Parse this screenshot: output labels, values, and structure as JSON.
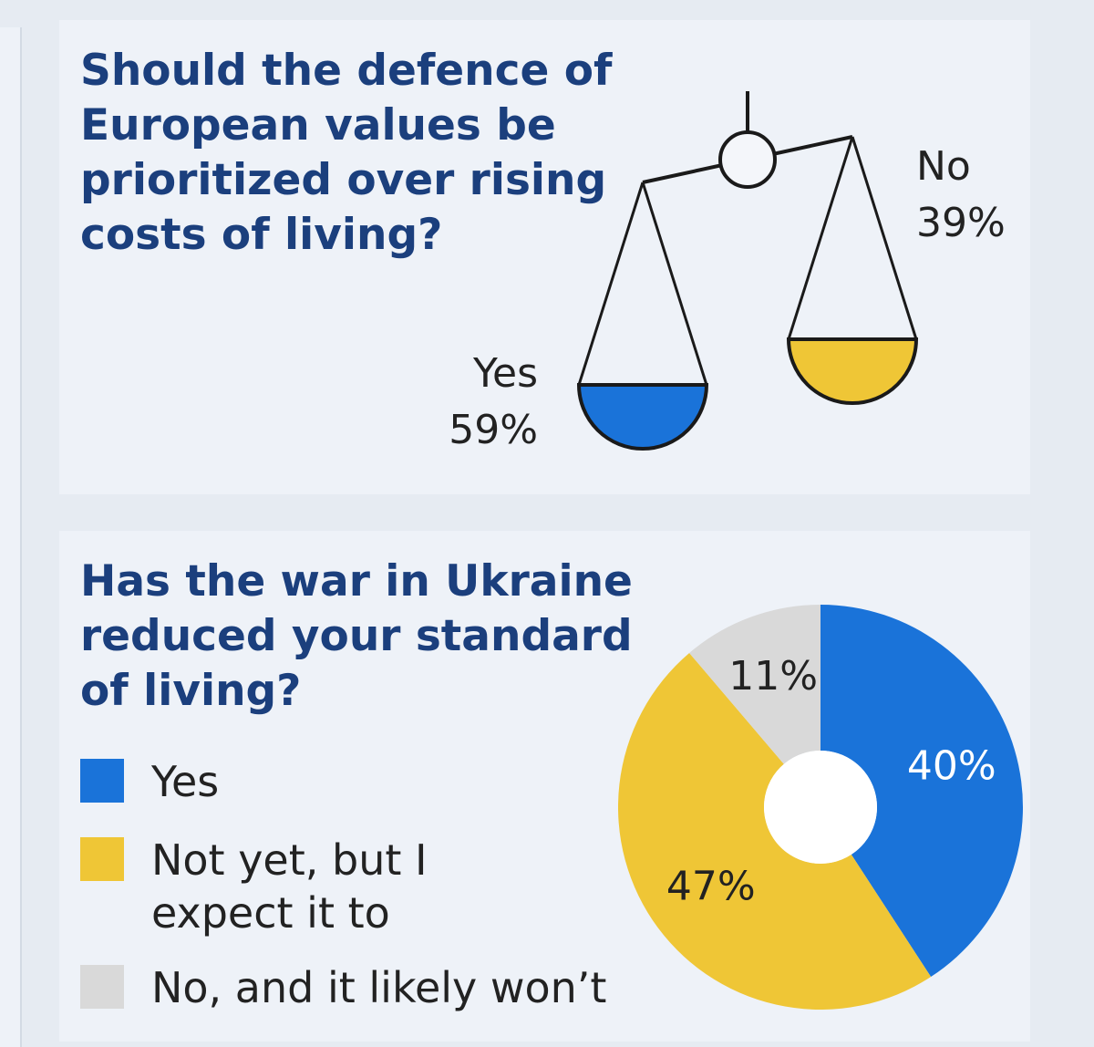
{
  "chart_data": [
    {
      "type": "scale",
      "title": "Should the defence of European values be prioritized over rising costs of living?",
      "categories": [
        "Yes",
        "No"
      ],
      "values": [
        59,
        39
      ],
      "value_labels": [
        "59%",
        "39%"
      ],
      "colors": [
        "#1a73d9",
        "#efc636"
      ]
    },
    {
      "type": "pie",
      "title": "Has the war in Ukraine reduced your standard of living?",
      "categories": [
        "Yes",
        "Not yet, but I expect it to",
        "No, and it likely won’t"
      ],
      "values": [
        40,
        47,
        11
      ],
      "value_labels": [
        "40%",
        "47%",
        "11%"
      ],
      "colors": [
        "#1a73d9",
        "#efc636",
        "#d9d9d9"
      ]
    }
  ]
}
